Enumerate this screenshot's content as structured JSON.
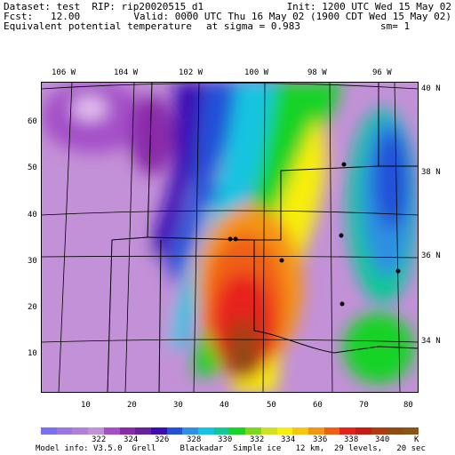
{
  "header": {
    "dataset": "Dataset: test  RIP: rip20020515_d1",
    "init": "Init: 1200 UTC Wed 15 May 02",
    "fcst": "Fcst:   12.00",
    "valid": "Valid: 0000 UTC Thu 16 May 02 (1900 CDT Wed 15 May 02)",
    "field": "Equivalent potential temperature",
    "level": "at sigma = 0.983",
    "smoothing": "sm= 1"
  },
  "map": {
    "top_lon_labels": [
      "106 W",
      "104 W",
      "102 W",
      "100 W",
      "98 W",
      "96 W"
    ],
    "right_lat_labels": [
      "40 N",
      "38 N",
      "36 N",
      "34 N"
    ],
    "left_grid_labels": [
      "60",
      "50",
      "40",
      "30",
      "20",
      "10"
    ],
    "bottom_grid_labels": [
      "10",
      "20",
      "30",
      "40",
      "50",
      "60",
      "70",
      "80"
    ]
  },
  "legend": {
    "colors": [
      "#7b6ff0",
      "#9b74e6",
      "#b07fd8",
      "#c391d7",
      "#a44fc8",
      "#8a2aa9",
      "#6a1f9d",
      "#3b0cb5",
      "#2451d8",
      "#2f8fe2",
      "#13c4e0",
      "#10c796",
      "#18d328",
      "#7bd81c",
      "#cfe21f",
      "#f7ee0d",
      "#f7c60e",
      "#f59412",
      "#f05e12",
      "#e8211a",
      "#c91a14",
      "#b03a12",
      "#8f4b14",
      "#8a5615"
    ],
    "tick_labels": [
      "322",
      "324",
      "326",
      "328",
      "330",
      "332",
      "334",
      "336",
      "338",
      "340",
      "K"
    ]
  },
  "footer": {
    "model_info": "Model info: V3.5.0  Grell     Blackadar  Simple ice   12 km,  29 levels,   20 sec"
  }
}
